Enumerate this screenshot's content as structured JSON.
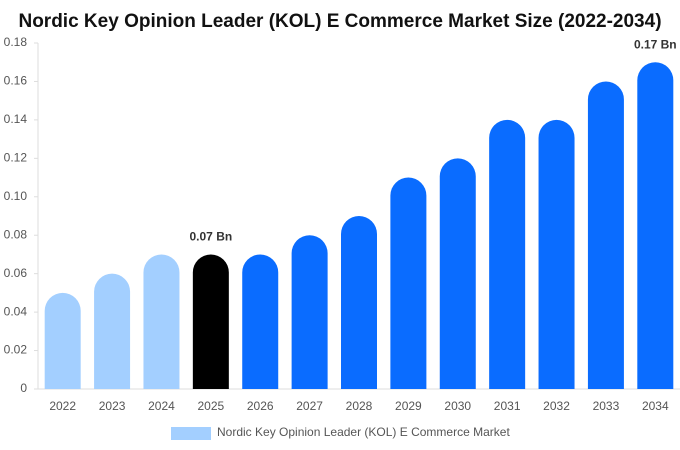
{
  "chart_data": {
    "type": "bar",
    "title": "Nordic Key Opinion Leader (KOL) E Commerce Market Size (2022-2034)",
    "categories": [
      "2022",
      "2023",
      "2024",
      "2025",
      "2026",
      "2027",
      "2028",
      "2029",
      "2030",
      "2031",
      "2032",
      "2033",
      "2034"
    ],
    "series": [
      {
        "name": "Nordic Key Opinion Leader (KOL) E Commerce Market",
        "color": "#a3cfff",
        "values": [
          0.05,
          0.06,
          0.07,
          0.07,
          0.07,
          0.08,
          0.09,
          0.11,
          0.12,
          0.14,
          0.14,
          0.16,
          0.17
        ],
        "colors": [
          "#a3cfff",
          "#a3cfff",
          "#a3cfff",
          "#000000",
          "#0a6cff",
          "#0a6cff",
          "#0a6cff",
          "#0a6cff",
          "#0a6cff",
          "#0a6cff",
          "#0a6cff",
          "#0a6cff",
          "#0a6cff"
        ],
        "value_labels": [
          null,
          null,
          null,
          "0.07 Bn",
          null,
          null,
          null,
          null,
          null,
          null,
          null,
          null,
          "0.17 Bn"
        ]
      }
    ],
    "ylim": [
      0,
      0.18
    ],
    "yticks": [
      0,
      0.02,
      0.04,
      0.06,
      0.08,
      {
        "value": 0.1,
        "label": "0.10"
      },
      0.12,
      0.14,
      0.16,
      0.18
    ],
    "grid": false,
    "legend": "bottom"
  }
}
